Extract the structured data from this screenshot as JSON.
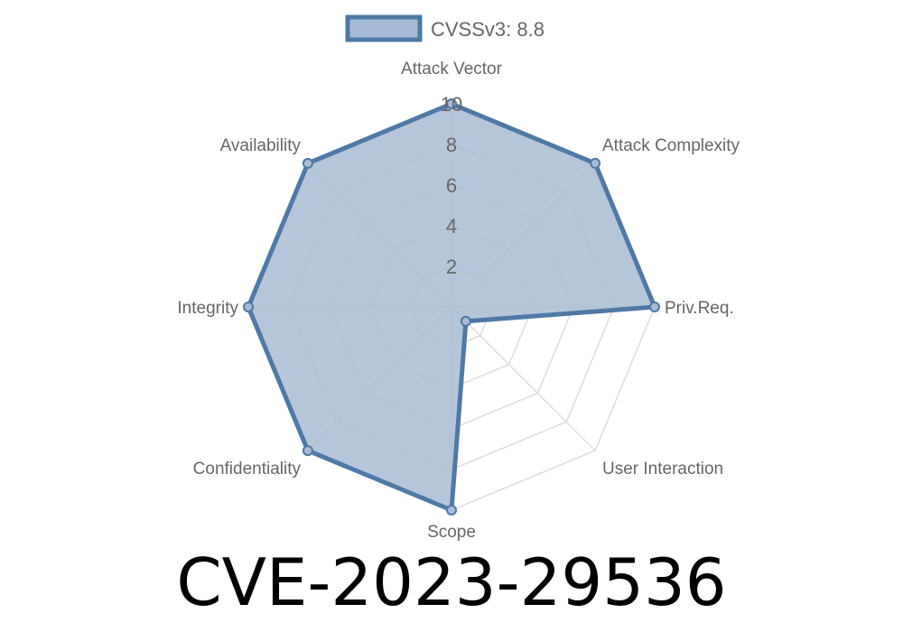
{
  "chart_data": {
    "type": "radar",
    "legend": {
      "label": "CVSSv3: 8.8",
      "position": "top"
    },
    "axes": [
      "Attack Vector",
      "Attack Complexity",
      "Priv.Req.",
      "User Interaction",
      "Scope",
      "Confidentiality",
      "Integrity",
      "Availability"
    ],
    "series": [
      {
        "name": "CVSSv3: 8.8",
        "values": [
          10,
          10,
          10,
          1,
          10,
          10,
          10,
          10
        ]
      }
    ],
    "rlim": [
      0,
      10
    ],
    "ticks": [
      "2",
      "4",
      "6",
      "8",
      "10"
    ],
    "grid": true,
    "colors": {
      "stroke": "#4e79a7",
      "fill": "#a8bbd4",
      "grid": "#dddddd"
    }
  },
  "title": "CVE-2023-29536"
}
